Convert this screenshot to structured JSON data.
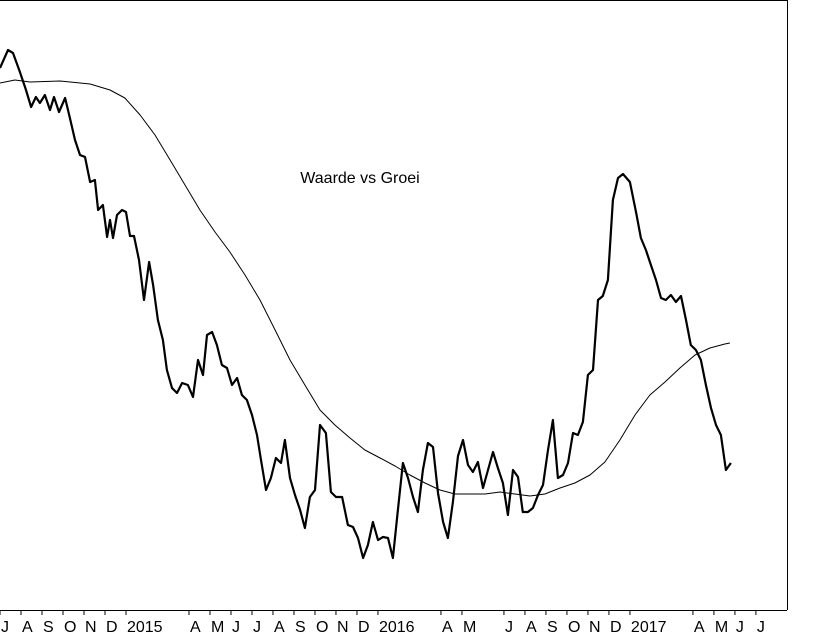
{
  "chart_data": {
    "type": "line",
    "title": "Waarde vs Groei",
    "xlim": [
      0,
      37.48
    ],
    "ylim": [
      0,
      610
    ],
    "xticks": [
      {
        "value": 0,
        "label": "J"
      },
      {
        "value": 1,
        "label": "A"
      },
      {
        "value": 2,
        "label": "S"
      },
      {
        "value": 3,
        "label": "O"
      },
      {
        "value": 4,
        "label": "N"
      },
      {
        "value": 5,
        "label": "D"
      },
      {
        "value": 6,
        "label": "2015"
      },
      {
        "value": 9,
        "label": "A"
      },
      {
        "value": 10,
        "label": "M"
      },
      {
        "value": 11,
        "label": "J"
      },
      {
        "value": 12,
        "label": "J"
      },
      {
        "value": 13,
        "label": "A"
      },
      {
        "value": 14,
        "label": "S"
      },
      {
        "value": 15,
        "label": "O"
      },
      {
        "value": 16,
        "label": "N"
      },
      {
        "value": 17,
        "label": "D"
      },
      {
        "value": 18,
        "label": "2016"
      },
      {
        "value": 21,
        "label": "A"
      },
      {
        "value": 22,
        "label": "M"
      },
      {
        "value": 24,
        "label": "J"
      },
      {
        "value": 25,
        "label": "A"
      },
      {
        "value": 26,
        "label": "S"
      },
      {
        "value": 27,
        "label": "O"
      },
      {
        "value": 28,
        "label": "N"
      },
      {
        "value": 29,
        "label": "D"
      },
      {
        "value": 30,
        "label": "2017"
      },
      {
        "value": 33,
        "label": "A"
      },
      {
        "value": 34,
        "label": "M"
      },
      {
        "value": 35,
        "label": "J"
      },
      {
        "value": 36,
        "label": "J"
      }
    ],
    "series": [
      {
        "color": "#000000",
        "x": [
          0,
          0.38,
          0.62,
          0.95,
          1.24,
          1.48,
          1.71,
          1.9,
          2.14,
          2.38,
          2.57,
          2.81,
          3.1,
          3.33,
          3.57,
          3.81,
          4.05,
          4.29,
          4.52,
          4.67,
          4.9,
          5.1,
          5.24,
          5.38,
          5.57,
          5.81,
          6,
          6.19,
          6.38,
          6.62,
          6.86,
          7.1,
          7.29,
          7.52,
          7.76,
          7.95,
          8.19,
          8.43,
          8.67,
          8.95,
          9.19,
          9.43,
          9.67,
          9.86,
          10.1,
          10.33,
          10.57,
          10.81,
          11.05,
          11.29,
          11.52,
          11.76,
          12,
          12.24,
          12.43,
          12.67,
          12.9,
          13.14,
          13.38,
          13.57,
          13.81,
          14.05,
          14.29,
          14.52,
          14.76,
          15,
          15.24,
          15.52,
          15.76,
          16,
          16.29,
          16.57,
          16.81,
          17.05,
          17.29,
          17.52,
          17.76,
          18,
          18.24,
          18.48,
          18.71,
          18.95,
          19.19,
          19.43,
          19.67,
          19.9,
          20.14,
          20.38,
          20.62,
          20.86,
          21.1,
          21.33,
          21.57,
          21.81,
          22.05,
          22.29,
          22.52,
          22.76,
          23,
          23.24,
          23.48,
          23.71,
          23.95,
          24.19,
          24.43,
          24.67,
          24.9,
          25.14,
          25.38,
          25.62,
          25.86,
          26.1,
          26.33,
          26.57,
          26.81,
          27.05,
          27.29,
          27.52,
          27.76,
          28,
          28.24,
          28.48,
          28.71,
          28.95,
          29.19,
          29.43,
          29.67,
          30,
          30.29,
          30.52,
          30.76,
          31,
          31.24,
          31.48,
          31.71,
          31.95,
          32.19,
          32.43,
          32.67,
          32.9,
          33.14,
          33.38,
          33.62,
          33.86,
          34.1,
          34.33,
          34.57,
          34.81
        ],
        "values": [
          542,
          560,
          557,
          538,
          520,
          503,
          513,
          507,
          515,
          500,
          513,
          498,
          512,
          492,
          470,
          455,
          453,
          428,
          430,
          400,
          405,
          373,
          390,
          372,
          395,
          400,
          398,
          374,
          374,
          350,
          310,
          348,
          325,
          290,
          270,
          240,
          222,
          217,
          227,
          225,
          213,
          250,
          235,
          275,
          278,
          265,
          245,
          242,
          225,
          232,
          215,
          210,
          195,
          175,
          150,
          120,
          132,
          152,
          147,
          170,
          132,
          115,
          100,
          82,
          113,
          120,
          185,
          177,
          118,
          113,
          113,
          85,
          83,
          72,
          52,
          65,
          88,
          70,
          73,
          72,
          52,
          100,
          147,
          132,
          113,
          98,
          140,
          167,
          163,
          117,
          88,
          72,
          108,
          154,
          170,
          145,
          138,
          148,
          122,
          140,
          158,
          142,
          127,
          95,
          140,
          133,
          98,
          98,
          102,
          115,
          125,
          160,
          190,
          132,
          135,
          147,
          177,
          175,
          188,
          235,
          240,
          310,
          314,
          330,
          410,
          432,
          436,
          428,
          398,
          372,
          360,
          345,
          330,
          312,
          310,
          315,
          308,
          314,
          290,
          265,
          260,
          250,
          225,
          202,
          185,
          175,
          140,
          147
        ]
      },
      {
        "color": "#000000",
        "x": [
          0,
          0.71,
          1.43,
          2.86,
          4.29,
          5.24,
          5.95,
          6.67,
          7.38,
          8.1,
          8.81,
          9.52,
          10.24,
          10.95,
          11.67,
          12.38,
          13.1,
          13.81,
          14.52,
          15.24,
          15.95,
          16.67,
          17.38,
          18.1,
          18.81,
          19.52,
          20.24,
          20.95,
          21.67,
          22.38,
          23.1,
          23.81,
          24.52,
          25.24,
          25.95,
          26.67,
          27.38,
          28.1,
          28.81,
          29.52,
          30.24,
          30.95,
          31.67,
          32.38,
          33.1,
          33.81,
          34.52,
          34.76
        ],
        "values": [
          527,
          530,
          528,
          529,
          526,
          520,
          512,
          495,
          475,
          450,
          425,
          400,
          378,
          358,
          335,
          310,
          280,
          250,
          225,
          200,
          185,
          172,
          160,
          152,
          144,
          135,
          127,
          120,
          116,
          116,
          116,
          118,
          116,
          114,
          116,
          122,
          127,
          135,
          148,
          170,
          195,
          215,
          228,
          242,
          255,
          262,
          266,
          267
        ]
      }
    ]
  }
}
